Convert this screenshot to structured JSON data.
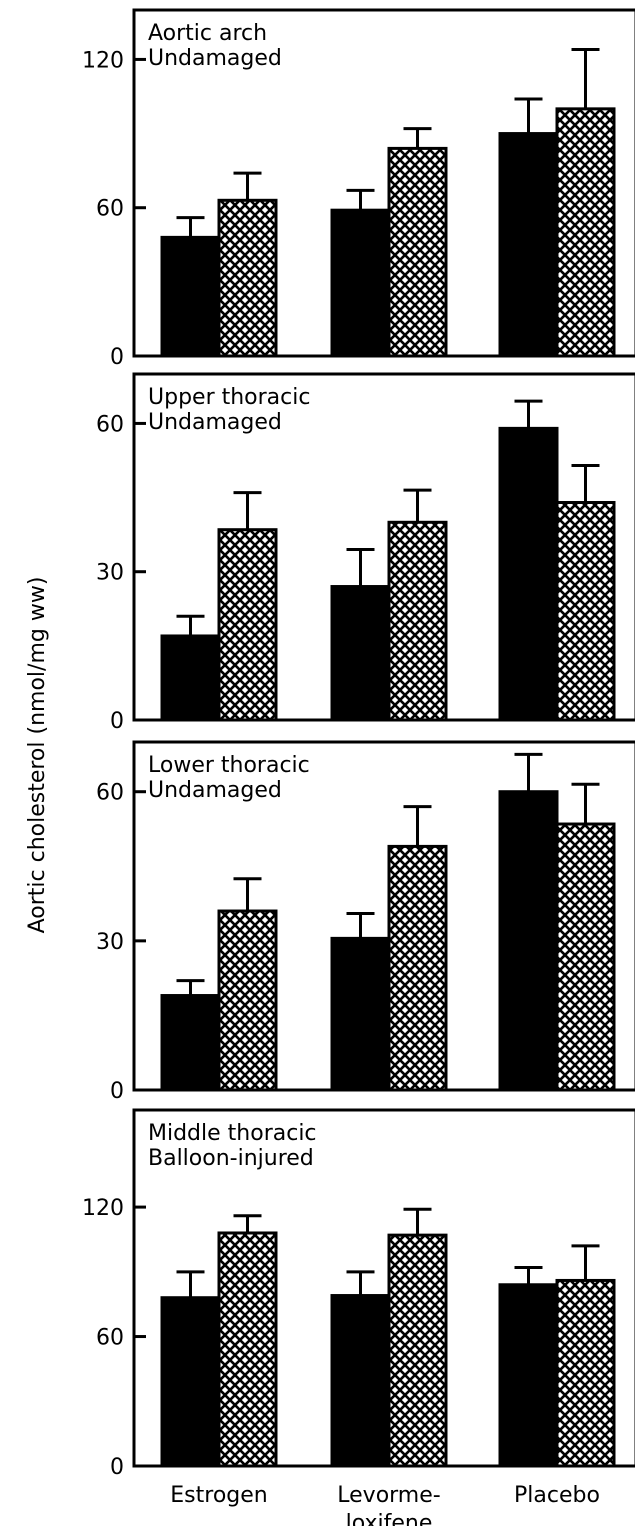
{
  "chart_data": {
    "type": "bar",
    "ylabel": "Aortic cholesterol (nmol/mg ww)",
    "categories": [
      "Estrogen",
      "Levorme-\nloxifene",
      "Placebo"
    ],
    "series_styles": [
      {
        "fill": "solid",
        "color": "#000000"
      },
      {
        "fill": "crosshatch",
        "color": "#000000"
      }
    ],
    "panels": [
      {
        "label_lines": [
          "Aortic arch",
          "Undamaged"
        ],
        "ylim": [
          0,
          140
        ],
        "yticks": [
          0,
          60,
          120
        ],
        "series": [
          {
            "values": [
              48,
              59,
              90
            ],
            "errors": [
              8,
              8,
              14
            ]
          },
          {
            "values": [
              63,
              84,
              100
            ],
            "errors": [
              11,
              8,
              24
            ]
          }
        ]
      },
      {
        "label_lines": [
          "Upper thoracic",
          "Undamaged"
        ],
        "ylim": [
          0,
          70
        ],
        "yticks": [
          0,
          30,
          60
        ],
        "series": [
          {
            "values": [
              17,
              27,
              59
            ],
            "errors": [
              4,
              7.5,
              5.5
            ]
          },
          {
            "values": [
              38.5,
              40,
              44
            ],
            "errors": [
              7.5,
              6.5,
              7.5
            ]
          }
        ]
      },
      {
        "label_lines": [
          "Lower thoracic",
          "Undamaged"
        ],
        "ylim": [
          0,
          70
        ],
        "yticks": [
          0,
          30,
          60
        ],
        "series": [
          {
            "values": [
              19,
              30.5,
              60
            ],
            "errors": [
              3,
              5,
              7.5
            ]
          },
          {
            "values": [
              36,
              49,
              53.5
            ],
            "errors": [
              6.5,
              8,
              8
            ]
          }
        ]
      },
      {
        "label_lines": [
          "Middle thoracic",
          "Balloon-injured"
        ],
        "ylim": [
          0,
          165
        ],
        "yticks": [
          0,
          60,
          120
        ],
        "series": [
          {
            "values": [
              78,
              79,
              84
            ],
            "errors": [
              12,
              11,
              8
            ]
          },
          {
            "values": [
              108,
              107,
              86
            ],
            "errors": [
              8,
              12,
              16
            ]
          }
        ]
      }
    ]
  }
}
